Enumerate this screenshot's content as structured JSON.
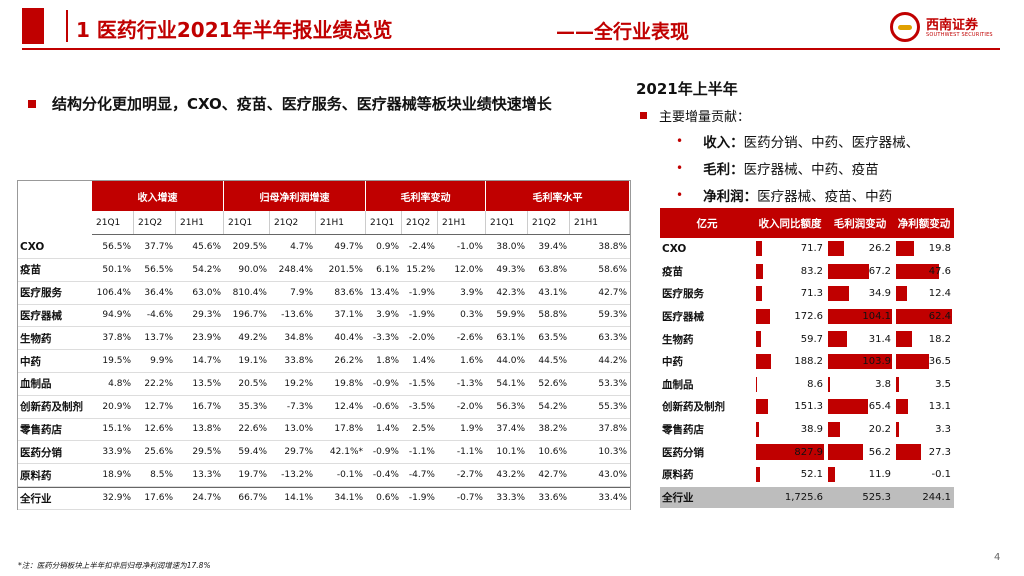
{
  "header": {
    "title": "1 医药行业2021年半年报业绩总览",
    "subtitle": "——全行业表现",
    "logo_cn": "西南证券",
    "logo_en": "SOUTHWEST SECURITIES"
  },
  "main_bullet": "结构分化更加明显，CXO、疫苗、医疗服务、医疗器械等板块业绩快速增长",
  "right_panel": {
    "heading": "2021年上半年",
    "subheading": "主要增量贡献：",
    "items": [
      {
        "label": "收入：",
        "text": "医药分销、中药、医疗器械、"
      },
      {
        "label": "毛利：",
        "text": "医疗器械、中药、疫苗"
      },
      {
        "label": "净利润：",
        "text": "医疗器械、疫苗、中药"
      }
    ]
  },
  "left_table": {
    "groups": [
      "收入增速",
      "归母净利润增速",
      "毛利率变动",
      "毛利率水平"
    ],
    "sub_headers": [
      "21Q1",
      "21Q2",
      "21H1",
      "21Q1",
      "21Q2",
      "21H1",
      "21Q1",
      "21Q2",
      "21H1",
      "21Q1",
      "21Q2",
      "21H1"
    ],
    "rows": [
      {
        "name": "CXO",
        "v": [
          "56.5%",
          "37.7%",
          "45.6%",
          "209.5%",
          "4.7%",
          "49.7%",
          "0.9%",
          "-2.4%",
          "-1.0%",
          "38.0%",
          "39.4%",
          "38.8%"
        ]
      },
      {
        "name": "疫苗",
        "v": [
          "50.1%",
          "56.5%",
          "54.2%",
          "90.0%",
          "248.4%",
          "201.5%",
          "6.1%",
          "15.2%",
          "12.0%",
          "49.3%",
          "63.8%",
          "58.6%"
        ]
      },
      {
        "name": "医疗服务",
        "v": [
          "106.4%",
          "36.4%",
          "63.0%",
          "810.4%",
          "7.9%",
          "83.6%",
          "13.4%",
          "-1.9%",
          "3.9%",
          "42.3%",
          "43.1%",
          "42.7%"
        ]
      },
      {
        "name": "医疗器械",
        "v": [
          "94.9%",
          "-4.6%",
          "29.3%",
          "196.7%",
          "-13.6%",
          "37.1%",
          "3.9%",
          "-1.9%",
          "0.3%",
          "59.9%",
          "58.8%",
          "59.3%"
        ]
      },
      {
        "name": "生物药",
        "v": [
          "37.8%",
          "13.7%",
          "23.9%",
          "49.2%",
          "34.8%",
          "40.4%",
          "-3.3%",
          "-2.0%",
          "-2.6%",
          "63.1%",
          "63.5%",
          "63.3%"
        ]
      },
      {
        "name": "中药",
        "v": [
          "19.5%",
          "9.9%",
          "14.7%",
          "19.1%",
          "33.8%",
          "26.2%",
          "1.8%",
          "1.4%",
          "1.6%",
          "44.0%",
          "44.5%",
          "44.2%"
        ]
      },
      {
        "name": "血制品",
        "v": [
          "4.8%",
          "22.2%",
          "13.5%",
          "20.5%",
          "19.2%",
          "19.8%",
          "-0.9%",
          "-1.5%",
          "-1.3%",
          "54.1%",
          "52.6%",
          "53.3%"
        ]
      },
      {
        "name": "创新药及制剂",
        "v": [
          "20.9%",
          "12.7%",
          "16.7%",
          "35.3%",
          "-7.3%",
          "12.4%",
          "-0.6%",
          "-3.5%",
          "-2.0%",
          "56.3%",
          "54.2%",
          "55.3%"
        ]
      },
      {
        "name": "零售药店",
        "v": [
          "15.1%",
          "12.6%",
          "13.8%",
          "22.6%",
          "13.0%",
          "17.8%",
          "1.4%",
          "2.5%",
          "1.9%",
          "37.4%",
          "38.2%",
          "37.8%"
        ]
      },
      {
        "name": "医药分销",
        "v": [
          "33.9%",
          "25.6%",
          "29.5%",
          "59.4%",
          "29.7%",
          "42.1%*",
          "-0.9%",
          "-1.1%",
          "-1.1%",
          "10.1%",
          "10.6%",
          "10.3%"
        ]
      },
      {
        "name": "原料药",
        "v": [
          "18.9%",
          "8.5%",
          "13.3%",
          "19.7%",
          "-13.2%",
          "-0.1%",
          "-0.4%",
          "-4.7%",
          "-2.7%",
          "43.2%",
          "42.7%",
          "43.0%"
        ]
      },
      {
        "name": "全行业",
        "v": [
          "32.9%",
          "17.6%",
          "24.7%",
          "66.7%",
          "14.1%",
          "34.1%",
          "0.6%",
          "-1.9%",
          "-0.7%",
          "33.3%",
          "33.6%",
          "33.4%"
        ]
      }
    ]
  },
  "right_table": {
    "headers": [
      "亿元",
      "收入同比额度",
      "毛利润变动",
      "净利额变动"
    ],
    "rows": [
      {
        "name": "CXO",
        "v": [
          71.7,
          26.2,
          19.8
        ],
        "t": [
          "71.7",
          "26.2",
          "19.8"
        ]
      },
      {
        "name": "疫苗",
        "v": [
          83.2,
          67.2,
          47.6
        ],
        "t": [
          "83.2",
          "67.2",
          "47.6"
        ]
      },
      {
        "name": "医疗服务",
        "v": [
          71.3,
          34.9,
          12.4
        ],
        "t": [
          "71.3",
          "34.9",
          "12.4"
        ]
      },
      {
        "name": "医疗器械",
        "v": [
          172.6,
          104.1,
          62.4
        ],
        "t": [
          "172.6",
          "104.1",
          "62.4"
        ]
      },
      {
        "name": "生物药",
        "v": [
          59.7,
          31.4,
          18.2
        ],
        "t": [
          "59.7",
          "31.4",
          "18.2"
        ]
      },
      {
        "name": "中药",
        "v": [
          188.2,
          103.9,
          36.5
        ],
        "t": [
          "188.2",
          "103.9",
          "36.5"
        ]
      },
      {
        "name": "血制品",
        "v": [
          8.6,
          3.8,
          3.5
        ],
        "t": [
          "8.6",
          "3.8",
          "3.5"
        ]
      },
      {
        "name": "创新药及制剂",
        "v": [
          151.3,
          65.4,
          13.1
        ],
        "t": [
          "151.3",
          "65.4",
          "13.1"
        ]
      },
      {
        "name": "零售药店",
        "v": [
          38.9,
          20.2,
          3.3
        ],
        "t": [
          "38.9",
          "20.2",
          "3.3"
        ]
      },
      {
        "name": "医药分销",
        "v": [
          827.9,
          56.2,
          27.3
        ],
        "t": [
          "827.9",
          "56.2",
          "27.3"
        ]
      },
      {
        "name": "原料药",
        "v": [
          52.1,
          11.9,
          -0.1
        ],
        "t": [
          "52.1",
          "11.9",
          "-0.1"
        ]
      },
      {
        "name": "全行业",
        "v": [
          null,
          null,
          null
        ],
        "t": [
          "1,725.6",
          "525.3",
          "244.1"
        ]
      }
    ]
  },
  "footnote": "*注：医药分销板块上半年扣非后归母净利润增速为17.8%",
  "page_number": "4"
}
